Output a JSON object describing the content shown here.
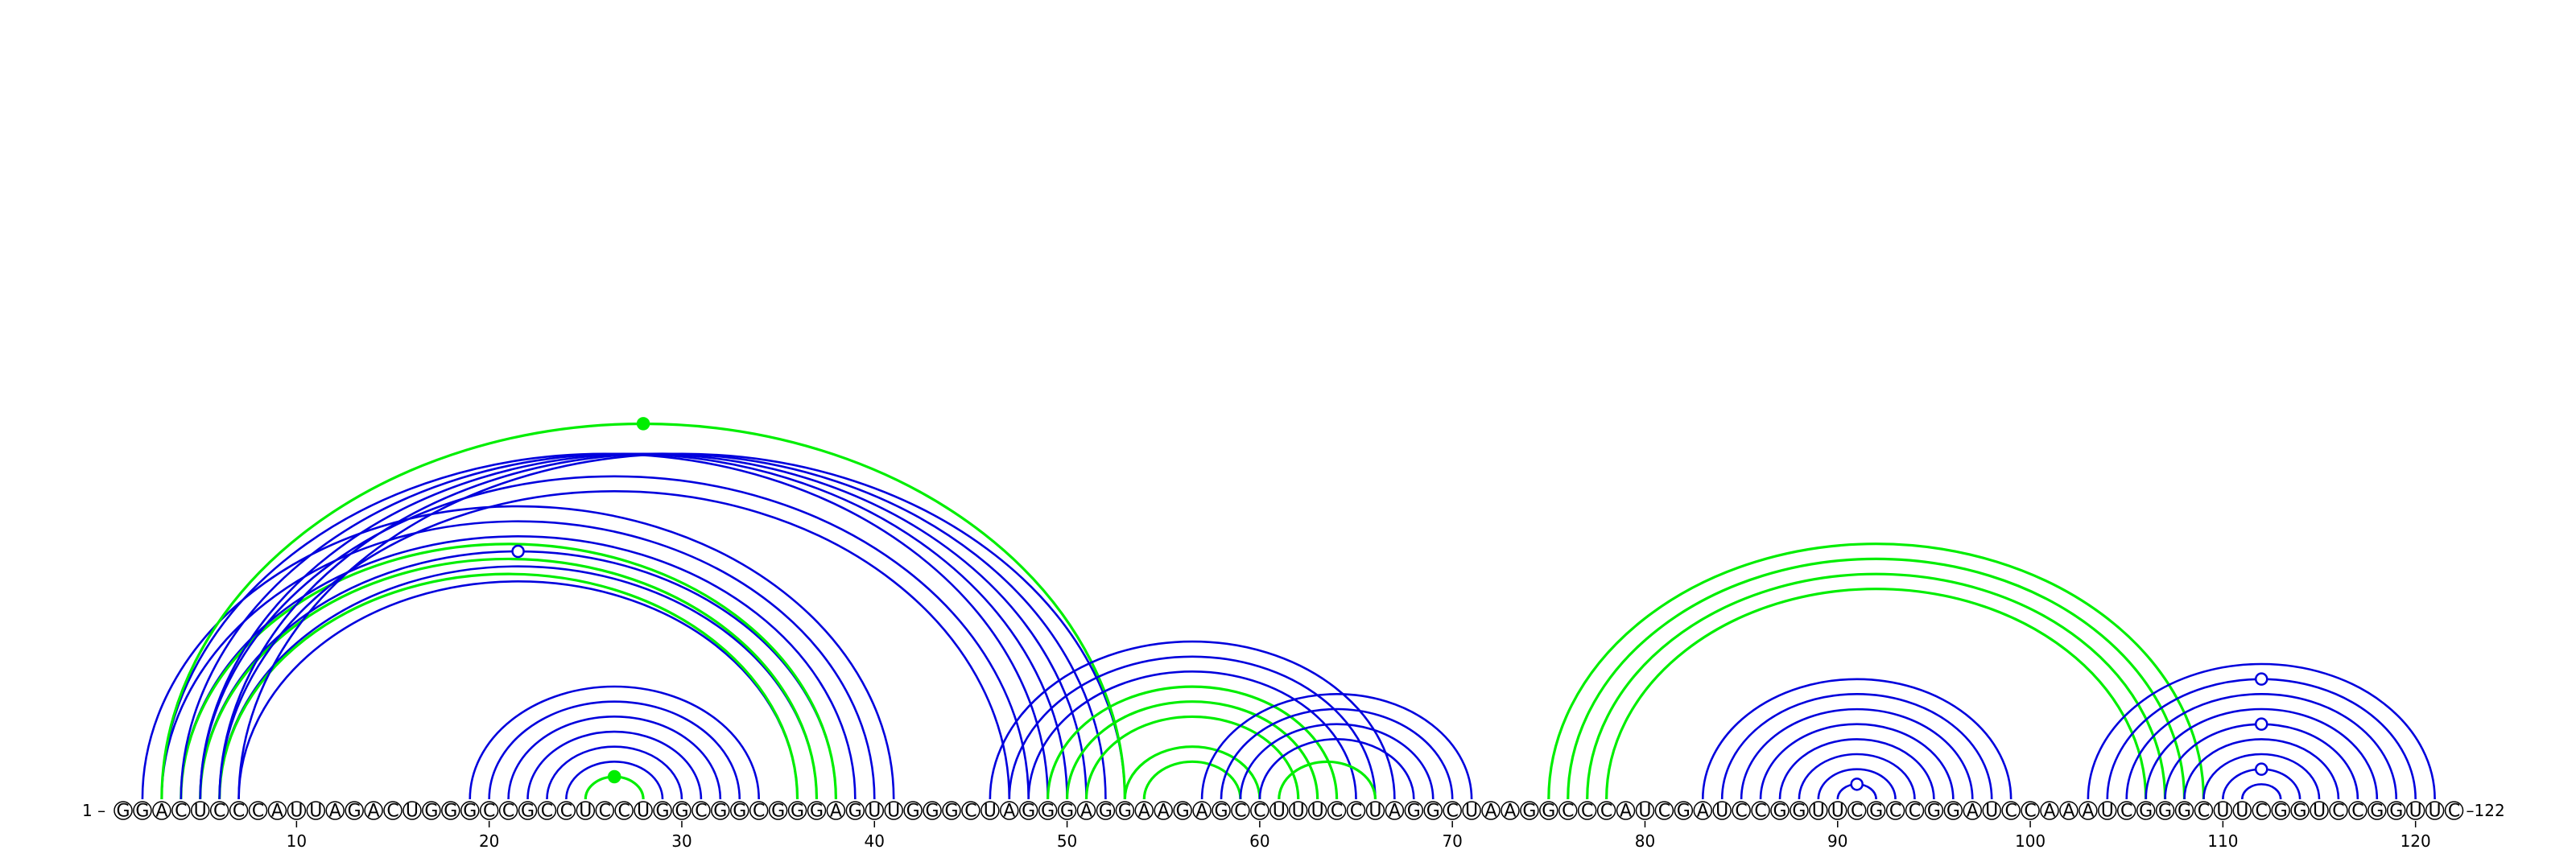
{
  "sequence": "GGACUCCCAUUAGACUGGGCCGCCUCCUGGCGGCGGGAGUUGGGCUAGGGAGGAAGAGCCUUUCCUAGGCUAAGGCCCAUCGAUCCGGUUCGCCGGAUCCAAAUCGGGCUUCGGUCCGGUUC",
  "start_label": "1 –",
  "end_label": "–122",
  "tick_labels": [
    "10",
    "20",
    "30",
    "40",
    "50",
    "60",
    "70",
    "80",
    "90",
    "100",
    "110",
    "120"
  ],
  "tick_positions": [
    10,
    20,
    30,
    40,
    50,
    60,
    70,
    80,
    90,
    100,
    110,
    120
  ],
  "colors": {
    "blue": "#0000dd",
    "green": "#00ee00",
    "text": "#000000"
  },
  "arc_groups": [
    {
      "color": "blue",
      "pairs": [
        [
          2,
          41
        ],
        [
          3,
          40
        ],
        [
          4,
          39
        ],
        [
          5,
          38
        ],
        [
          6,
          37
        ],
        [
          7,
          36
        ]
      ]
    },
    {
      "color": "green",
      "pairs": [
        [
          4,
          38
        ],
        [
          5,
          37
        ],
        [
          6,
          36
        ]
      ]
    },
    {
      "color": "blue",
      "pairs": [
        [
          19,
          34
        ],
        [
          20,
          33
        ],
        [
          21,
          32
        ],
        [
          22,
          31
        ],
        [
          23,
          30
        ],
        [
          24,
          29
        ],
        [
          25,
          28
        ]
      ]
    },
    {
      "color": "green",
      "pairs": [
        [
          25,
          28
        ]
      ]
    },
    {
      "color": "blue",
      "pairs": [
        [
          3,
          49
        ],
        [
          4,
          50
        ],
        [
          5,
          51
        ],
        [
          6,
          52
        ],
        [
          7,
          53
        ]
      ]
    },
    {
      "color": "blue",
      "pairs": [
        [
          5,
          48
        ],
        [
          6,
          47
        ]
      ]
    },
    {
      "color": "green",
      "pairs": [
        [
          3,
          53
        ]
      ]
    },
    {
      "color": "blue",
      "pairs": [
        [
          46,
          67
        ],
        [
          47,
          66
        ],
        [
          48,
          65
        ]
      ]
    },
    {
      "color": "green",
      "pairs": [
        [
          49,
          64
        ],
        [
          50,
          63
        ],
        [
          51,
          62
        ]
      ]
    },
    {
      "color": "green",
      "pairs": [
        [
          53,
          60
        ],
        [
          54,
          59
        ]
      ]
    },
    {
      "color": "blue",
      "pairs": [
        [
          57,
          71
        ],
        [
          58,
          70
        ],
        [
          59,
          69
        ],
        [
          60,
          68
        ]
      ]
    },
    {
      "color": "green",
      "pairs": [
        [
          61,
          66
        ]
      ]
    },
    {
      "color": "green",
      "pairs": [
        [
          75,
          109
        ],
        [
          76,
          108
        ],
        [
          77,
          107
        ],
        [
          78,
          106
        ]
      ]
    },
    {
      "color": "blue",
      "pairs": [
        [
          83,
          99
        ],
        [
          84,
          98
        ],
        [
          85,
          97
        ],
        [
          86,
          96
        ],
        [
          87,
          95
        ],
        [
          88,
          94
        ],
        [
          89,
          93
        ],
        [
          90,
          92
        ]
      ]
    },
    {
      "color": "blue",
      "pairs": [
        [
          103,
          121
        ],
        [
          104,
          120
        ],
        [
          105,
          119
        ],
        [
          106,
          118
        ],
        [
          107,
          117
        ],
        [
          108,
          116
        ],
        [
          109,
          115
        ],
        [
          110,
          114
        ],
        [
          111,
          113
        ]
      ]
    }
  ],
  "markers": [
    {
      "between": [
        3,
        53
      ],
      "color": "green",
      "filled": true
    },
    {
      "between": [
        5,
        38
      ],
      "color": "blue",
      "filled": false
    },
    {
      "between": [
        25,
        28
      ],
      "color": "green",
      "filled": true
    },
    {
      "between": [
        90,
        92
      ],
      "color": "blue",
      "filled": false
    },
    {
      "between": [
        104,
        120
      ],
      "color": "blue",
      "filled": false
    },
    {
      "between": [
        107,
        117
      ],
      "color": "blue",
      "filled": false
    },
    {
      "between": [
        110,
        114
      ],
      "color": "blue",
      "filled": false
    }
  ]
}
